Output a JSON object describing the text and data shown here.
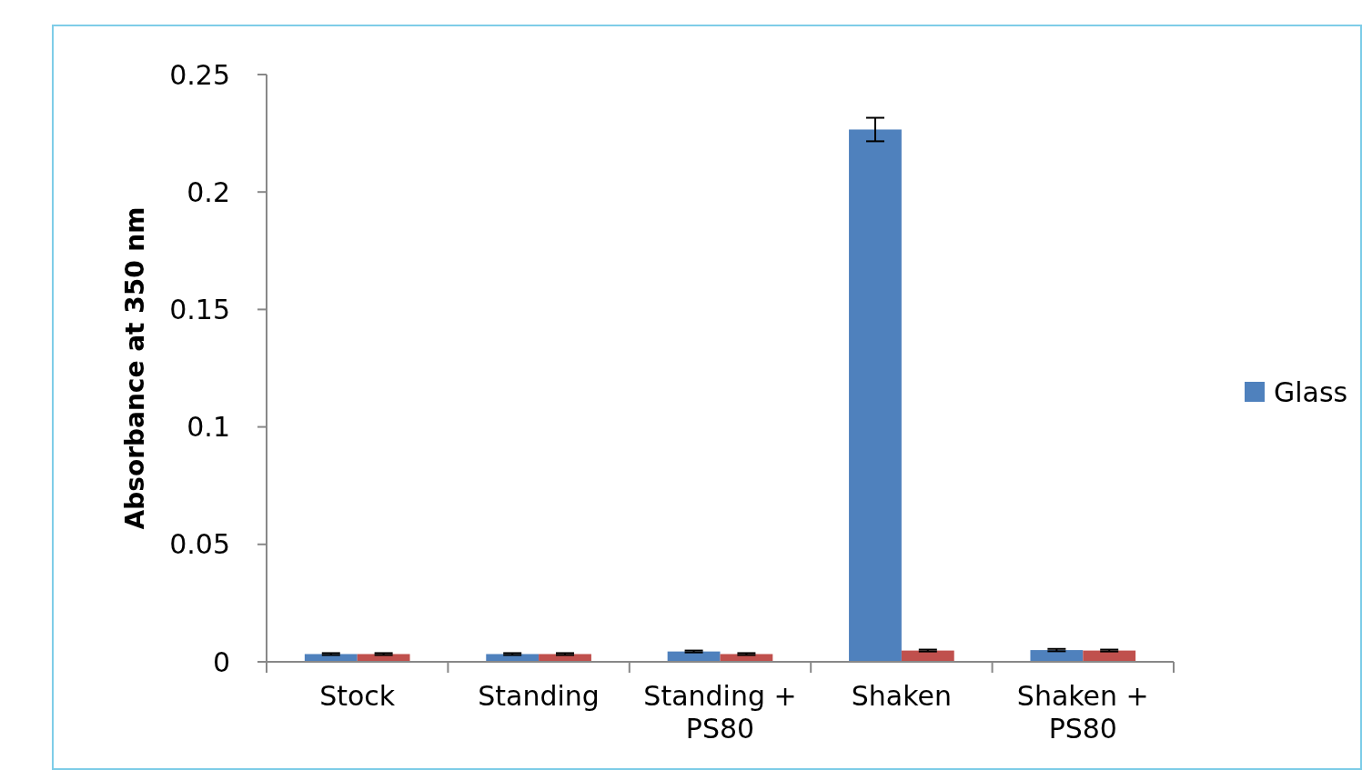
{
  "chart_data": {
    "type": "bar",
    "ylabel": "Absorbance at 350 nm",
    "categories": [
      "Stock",
      "Standing",
      "Standing + PS80",
      "Shaken",
      "Shaken + PS80"
    ],
    "series": [
      {
        "name": "Glass",
        "color": "#4f81bd",
        "values": [
          0.0033,
          0.0033,
          0.0044,
          0.2266,
          0.005
        ],
        "errors": [
          0.0004,
          0.0004,
          0.0004,
          0.005,
          0.0005
        ]
      },
      {
        "color": "#c0504d",
        "values": [
          0.0033,
          0.0033,
          0.0033,
          0.0048,
          0.0048
        ],
        "errors": [
          0.0004,
          0.0004,
          0.0004,
          0.0004,
          0.0004
        ]
      }
    ],
    "ylim": [
      0,
      0.25
    ],
    "yticks": [
      0,
      0.05,
      0.1,
      0.15,
      0.2,
      0.25
    ],
    "grid": false,
    "legend": "right"
  }
}
